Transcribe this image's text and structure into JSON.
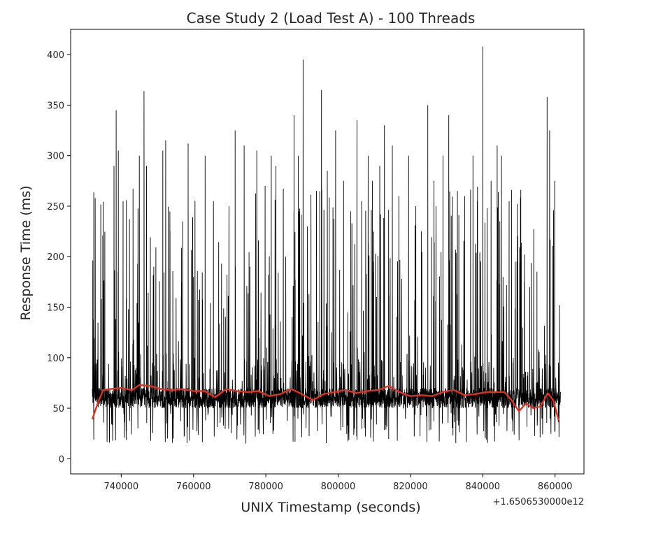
{
  "chart_data": {
    "type": "line",
    "title": "Case Study 2 (Load Test A) - 100 Threads",
    "xlabel": "UNIX Timestamp (seconds)",
    "ylabel": "Response Time (ms)",
    "x_offset_label": "+1.6506530000e12",
    "xlim": [
      726000,
      868000
    ],
    "ylim": [
      -15,
      425
    ],
    "x_ticks": [
      740000,
      760000,
      780000,
      800000,
      820000,
      840000,
      860000
    ],
    "x_tick_labels": [
      "740000",
      "760000",
      "780000",
      "800000",
      "820000",
      "840000",
      "860000"
    ],
    "y_ticks": [
      0,
      50,
      100,
      150,
      200,
      250,
      300,
      350,
      400
    ],
    "y_tick_labels": [
      "0",
      "50",
      "100",
      "150",
      "200",
      "250",
      "300",
      "350",
      "400"
    ],
    "grid": false,
    "series": [
      {
        "color": "#000000",
        "baseline_band": [
          40,
          80
        ],
        "x_range": [
          732000,
          861500
        ],
        "spikes": [
          [
            732200,
            138
          ],
          [
            732800,
            258
          ],
          [
            734500,
            158
          ],
          [
            738000,
            290
          ],
          [
            738600,
            345
          ],
          [
            739200,
            305
          ],
          [
            740500,
            255
          ],
          [
            742000,
            148
          ],
          [
            745000,
            300
          ],
          [
            746300,
            364
          ],
          [
            747000,
            290
          ],
          [
            749000,
            190
          ],
          [
            751500,
            305
          ],
          [
            752300,
            315
          ],
          [
            753500,
            225
          ],
          [
            757000,
            235
          ],
          [
            758500,
            312
          ],
          [
            760000,
            180
          ],
          [
            763200,
            300
          ],
          [
            765500,
            255
          ],
          [
            769800,
            250
          ],
          [
            771500,
            325
          ],
          [
            774000,
            310
          ],
          [
            777500,
            305
          ],
          [
            779800,
            270
          ],
          [
            781500,
            300
          ],
          [
            782800,
            290
          ],
          [
            785500,
            200
          ],
          [
            787800,
            340
          ],
          [
            789000,
            300
          ],
          [
            790300,
            395
          ],
          [
            791500,
            230
          ],
          [
            792500,
            225
          ],
          [
            794000,
            265
          ],
          [
            795400,
            365
          ],
          [
            797000,
            285
          ],
          [
            799300,
            325
          ],
          [
            801500,
            275
          ],
          [
            803500,
            245
          ],
          [
            805200,
            335
          ],
          [
            806500,
            255
          ],
          [
            808300,
            300
          ],
          [
            809500,
            275
          ],
          [
            811500,
            290
          ],
          [
            812800,
            330
          ],
          [
            815000,
            310
          ],
          [
            816800,
            260
          ],
          [
            819500,
            300
          ],
          [
            821500,
            250
          ],
          [
            823000,
            225
          ],
          [
            824800,
            350
          ],
          [
            826500,
            275
          ],
          [
            829000,
            300
          ],
          [
            830600,
            340
          ],
          [
            833000,
            265
          ],
          [
            835000,
            260
          ],
          [
            837300,
            300
          ],
          [
            838500,
            255
          ],
          [
            840000,
            408
          ],
          [
            842300,
            275
          ],
          [
            844000,
            310
          ],
          [
            845200,
            300
          ],
          [
            847300,
            255
          ],
          [
            849000,
            195
          ],
          [
            851500,
            175
          ],
          [
            853000,
            170
          ],
          [
            855000,
            185
          ],
          [
            857800,
            358
          ],
          [
            858500,
            325
          ],
          [
            859900,
            275
          ],
          [
            861200,
            152
          ]
        ]
      },
      {
        "color": "#e0301e",
        "x": [
          732000,
          733500,
          735000,
          737000,
          740000,
          743000,
          745000,
          748000,
          751000,
          754000,
          757000,
          760000,
          763000,
          766000,
          769000,
          772000,
          775000,
          778000,
          781000,
          784000,
          787000,
          790000,
          793000,
          796000,
          799000,
          802000,
          805000,
          808000,
          811000,
          814000,
          817000,
          820000,
          823000,
          826000,
          829000,
          832000,
          835000,
          838000,
          841000,
          844000,
          846000,
          848000,
          850000,
          852000,
          854000,
          856000,
          858000,
          859500,
          861000
        ],
        "values": [
          39,
          55,
          68,
          69,
          70,
          68,
          73,
          72,
          69,
          68,
          69,
          67,
          67,
          61,
          69,
          67,
          66,
          67,
          62,
          64,
          69,
          64,
          58,
          64,
          66,
          68,
          65,
          67,
          68,
          72,
          66,
          62,
          63,
          62,
          66,
          68,
          63,
          64,
          66,
          66,
          66,
          58,
          47,
          55,
          50,
          52,
          65,
          58,
          38
        ]
      }
    ]
  }
}
